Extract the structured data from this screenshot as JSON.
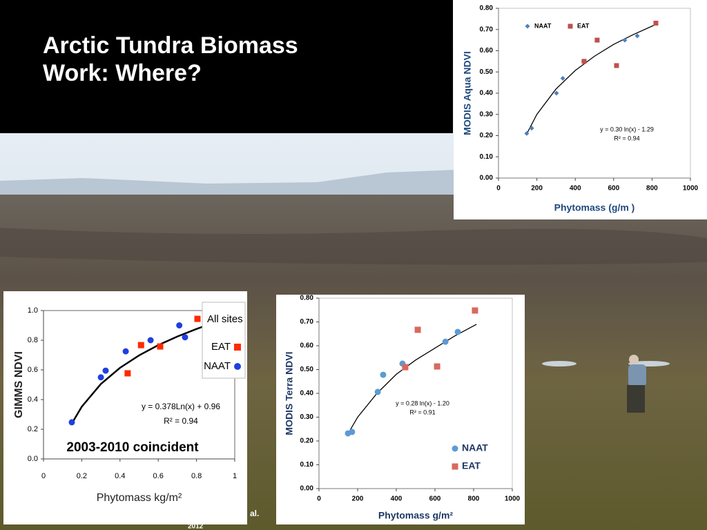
{
  "title": [
    "Arctic Tundra Biomass",
    "Work: Where?"
  ],
  "citation": [
    "al.",
    "2012"
  ],
  "chart_data": [
    {
      "type": "scatter",
      "ylabel": "MODIS Aqua NDVI",
      "xlabel": "Phytomass (g/m )",
      "xlim": [
        0,
        1000
      ],
      "xticks": [
        0,
        200,
        400,
        600,
        800,
        1000
      ],
      "ylim": [
        0,
        0.8
      ],
      "yticks": [
        {
          "value": 0,
          "label": "0.00"
        },
        {
          "value": 0.1,
          "label": "0.10"
        },
        {
          "value": 0.2,
          "label": "0.20"
        },
        {
          "value": 0.3,
          "label": "0.30"
        },
        {
          "value": 0.4,
          "label": "0.40"
        },
        {
          "value": 0.5,
          "label": "0.50"
        },
        {
          "value": 0.6,
          "label": "0.60"
        },
        {
          "value": 0.7,
          "label": "0.70"
        },
        {
          "value": 0.8,
          "label": "0.80"
        }
      ],
      "series": [
        {
          "name": "NAAT",
          "color": "#4f81bd",
          "marker": "diamond",
          "x": [
            147,
            173,
            302,
            335,
            443,
            658,
            723
          ],
          "values": [
            0.21,
            0.235,
            0.4,
            0.47,
            0.55,
            0.65,
            0.67
          ]
        },
        {
          "name": "EAT",
          "color": "#c0504d",
          "marker": "square",
          "x": [
            446,
            514,
            615,
            820
          ],
          "values": [
            0.55,
            0.65,
            0.53,
            0.73
          ]
        }
      ],
      "trendline": {
        "x": [
          150,
          200,
          300,
          400,
          500,
          600,
          700,
          810
        ],
        "values": [
          0.213,
          0.3,
          0.42,
          0.507,
          0.574,
          0.63,
          0.675,
          0.72
        ]
      },
      "annotations": [
        "y = 0.30 ln(x) - 1.29",
        "R² = 0.94"
      ]
    },
    {
      "type": "scatter",
      "ylabel": "GIMMS NDVI",
      "xlabel": "Phytomass kg/m²",
      "xlim": [
        0,
        1
      ],
      "xticks": [
        0,
        0.2,
        0.4,
        0.6,
        0.8,
        1
      ],
      "ylim": [
        0,
        1
      ],
      "yticks": [
        {
          "value": 0,
          "label": "0.0"
        },
        0.2,
        0.4,
        0.6,
        0.8,
        {
          "value": 1,
          "label": "1.0"
        }
      ],
      "legend_title": "All sites",
      "series": [
        {
          "name": "EAT",
          "color": "#ff2a00",
          "marker": "square",
          "x": [
            0.44,
            0.51,
            0.61,
            0.805
          ],
          "values": [
            0.577,
            0.767,
            0.758,
            0.944
          ]
        },
        {
          "name": "NAAT",
          "color": "#1f3fe0",
          "marker": "circle",
          "x": [
            0.148,
            0.3,
            0.325,
            0.43,
            0.56,
            0.71,
            0.74
          ],
          "values": [
            0.247,
            0.55,
            0.595,
            0.725,
            0.8,
            0.9,
            0.82
          ]
        }
      ],
      "trendline": {
        "x": [
          0.15,
          0.2,
          0.3,
          0.4,
          0.5,
          0.6,
          0.7,
          0.8,
          0.85
        ],
        "values": [
          0.243,
          0.352,
          0.505,
          0.614,
          0.698,
          0.767,
          0.825,
          0.876,
          0.899
        ]
      },
      "annotations": [
        "y = 0.378Ln(x) + 0.96",
        "R² = 0.94",
        "2003-2010 coincident"
      ]
    },
    {
      "type": "scatter",
      "ylabel": "MODIS Terra NDVI",
      "xlabel": "Phytomass g/m²",
      "xlim": [
        0,
        1000
      ],
      "xticks": [
        0,
        200,
        400,
        600,
        800,
        1000
      ],
      "ylim": [
        0,
        0.8
      ],
      "yticks": [
        {
          "value": 0,
          "label": "0.00"
        },
        {
          "value": 0.1,
          "label": "0.10"
        },
        {
          "value": 0.2,
          "label": "0.20"
        },
        {
          "value": 0.3,
          "label": "0.30"
        },
        {
          "value": 0.4,
          "label": "0.40"
        },
        {
          "value": 0.5,
          "label": "0.50"
        },
        {
          "value": 0.6,
          "label": "0.60"
        },
        {
          "value": 0.7,
          "label": "0.70"
        },
        {
          "value": 0.8,
          "label": "0.80"
        }
      ],
      "series": [
        {
          "name": "NAAT",
          "color": "#5b9bd5",
          "marker": "circle",
          "x": [
            150,
            171,
            304,
            332,
            432,
            654,
            718
          ],
          "values": [
            0.232,
            0.238,
            0.406,
            0.478,
            0.525,
            0.617,
            0.658
          ]
        },
        {
          "name": "EAT",
          "color": "#d9695f",
          "marker": "square",
          "x": [
            446,
            511,
            611,
            807
          ],
          "values": [
            0.51,
            0.667,
            0.513,
            0.748
          ]
        }
      ],
      "trendline": {
        "x": [
          150,
          200,
          300,
          400,
          500,
          600,
          700,
          815
        ],
        "values": [
          0.23,
          0.3,
          0.4,
          0.48,
          0.54,
          0.59,
          0.64,
          0.69
        ]
      },
      "annotations": [
        "y = 0.28 ln(x) - 1.20",
        "R² = 0.91"
      ]
    }
  ]
}
